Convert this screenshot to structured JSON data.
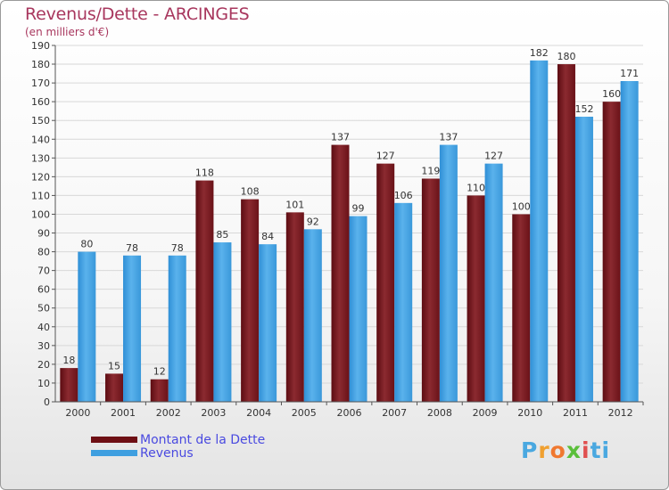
{
  "title": "Revenus/Dette - ARCINGES",
  "subtitle": "(en milliers d'€)",
  "logo_text": "Proxiti",
  "colors": {
    "dette": "#7b1c22",
    "revenus": "#3f9fe0",
    "grid": "#d8d8d8",
    "axis": "#555555",
    "title": "#a8375e",
    "legend_text": "#4a4ae0"
  },
  "legend": [
    {
      "label": "Montant de la Dette",
      "color": "#6e0f14"
    },
    {
      "label": "Revenus",
      "color": "#3f9fe0"
    }
  ],
  "chart_data": {
    "type": "bar",
    "categories": [
      "2000",
      "2001",
      "2002",
      "2003",
      "2004",
      "2005",
      "2006",
      "2007",
      "2008",
      "2009",
      "2010",
      "2011",
      "2012"
    ],
    "series": [
      {
        "name": "Montant de la Dette",
        "values": [
          18,
          15,
          12,
          118,
          108,
          101,
          137,
          127,
          119,
          110,
          100,
          180,
          160
        ]
      },
      {
        "name": "Revenus",
        "values": [
          80,
          78,
          78,
          85,
          84,
          92,
          99,
          106,
          137,
          127,
          182,
          152,
          171
        ]
      }
    ],
    "title": "Revenus/Dette - ARCINGES",
    "subtitle": "(en milliers d'€)",
    "ylim": [
      0,
      190
    ],
    "yticks": [
      0,
      10,
      20,
      30,
      40,
      50,
      60,
      70,
      80,
      90,
      100,
      110,
      120,
      130,
      140,
      150,
      160,
      170,
      180,
      190
    ],
    "grid": true,
    "legend_position": "bottom-left"
  }
}
